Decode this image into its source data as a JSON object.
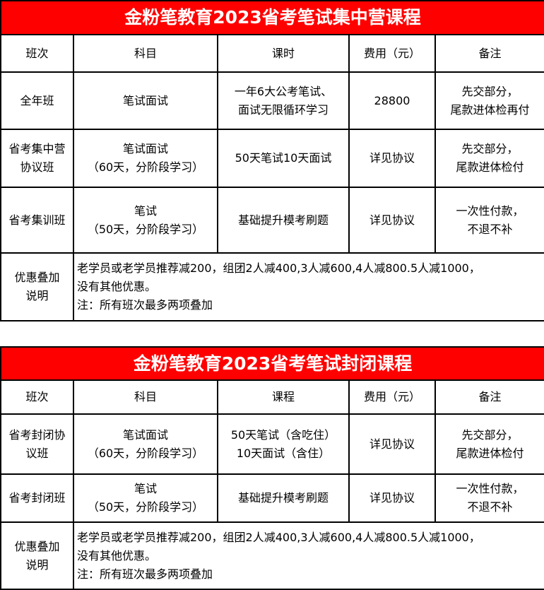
{
  "tables": [
    {
      "title": "金粉笔教育2023省考笔试集中营课程",
      "headers": [
        "班次",
        "科目",
        "课时",
        "费用（元）",
        "备注"
      ],
      "rows": [
        [
          "全年班",
          "笔试面试",
          "一年6大公考笔试、\n面试无限循环学习",
          "28800",
          "先交部分，\n尾款进体检再付"
        ],
        [
          "省考集中营\n协议班",
          "笔试面试\n（60天，分阶段学习）",
          "50天笔试10天面试",
          "详见协议",
          "先交部分，\n尾款进体检付"
        ],
        [
          "省考集训班",
          "笔试\n（50天，分阶段学习）",
          "基础提升模考刷题",
          "详见协议",
          "一次性付款，\n不退不补"
        ]
      ],
      "discount_label": "优惠叠加\n说明",
      "discount_text": "老学员或老学员推荐减200，组团2人减400,3人减600,4人减800.5人减1000，\n没有其他优惠。\n注：所有班次最多两项叠加"
    },
    {
      "title": "金粉笔教育2023省考笔试封闭课程",
      "headers": [
        "班次",
        "科目",
        "课程",
        "费用（元）",
        "备注"
      ],
      "rows": [
        [
          "省考封闭协\n议班",
          "笔试面试\n（60天，分阶段学习）",
          "50天笔试（含吃住）\n10天面试（含住）",
          "详见协议",
          "先交部分，\n尾款进体检付"
        ],
        [
          "省考封闭班",
          "笔试\n（50天，分阶段学习）",
          "基础提升模考刷题",
          "详见协议",
          "一次性付款，\n不退不补"
        ]
      ],
      "discount_label": "优惠叠加\n说明",
      "discount_text": "老学员或老学员推荐减200，组团2人减400,3人减600,4人减800.5人减1000，\n没有其他优惠。\n注：所有班次最多两项叠加"
    }
  ],
  "colors": {
    "title_bg": "#ff0000",
    "title_text": "#ffffff"
  }
}
